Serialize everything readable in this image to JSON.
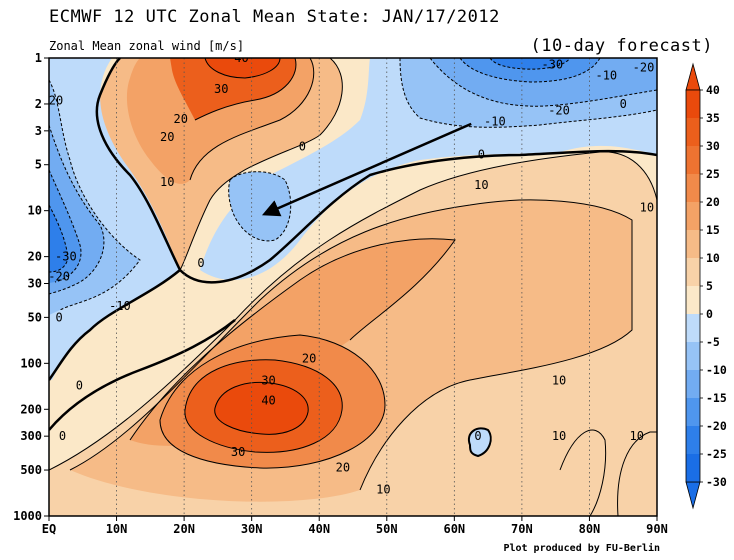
{
  "chart_data": {
    "type": "contour",
    "title": "ECMWF 12 UTC Zonal Mean State: JAN/17/2012",
    "subtitle_left": "Zonal Mean zonal wind [m/s]",
    "subtitle_right": "(10-day forecast)",
    "credit": "Plot produced by FU-Berlin",
    "x_axis": {
      "ticks": [
        "EQ",
        "10N",
        "20N",
        "30N",
        "40N",
        "50N",
        "60N",
        "70N",
        "80N",
        "90N"
      ],
      "range": [
        0,
        90
      ],
      "unit": "degrees latitude"
    },
    "y_axis": {
      "scale": "log",
      "reversed": true,
      "range": [
        1000,
        1
      ],
      "ticks": [
        1,
        2,
        3,
        5,
        10,
        20,
        30,
        50,
        100,
        200,
        300,
        500,
        1000
      ],
      "unit": "hPa"
    },
    "colorbar": {
      "levels": [
        -30,
        -25,
        -20,
        -15,
        -10,
        -5,
        0,
        5,
        10,
        15,
        20,
        25,
        30,
        35,
        40
      ],
      "labels": [
        "40",
        "35",
        "30",
        "25",
        "20",
        "15",
        "10",
        "5",
        "0",
        "-5",
        "-10",
        "-15",
        "-20",
        "-25",
        "-30"
      ],
      "colors": [
        "#1a6ee6",
        "#2e7fea",
        "#4f96ee",
        "#72acf2",
        "#96c3f6",
        "#bedbfa",
        "#fbe8c8",
        "#f8d2a8",
        "#f6bb87",
        "#f3a266",
        "#f18a4a",
        "#ee7331",
        "#ec5f1c",
        "#ea4a0c"
      ]
    },
    "contour_labels": [
      {
        "text": "40",
        "lat": 28.5,
        "p": 1.0
      },
      {
        "text": "30",
        "lat": 25.5,
        "p": 1.6
      },
      {
        "text": "20",
        "lat": 19.5,
        "p": 2.5
      },
      {
        "text": "20",
        "lat": 17.5,
        "p": 3.3
      },
      {
        "text": "10",
        "lat": 17.5,
        "p": 6.5
      },
      {
        "text": "0",
        "lat": 22.5,
        "p": 22
      },
      {
        "text": "0",
        "lat": 37.5,
        "p": 3.8
      },
      {
        "text": "-20",
        "lat": 0.5,
        "p": 1.9
      },
      {
        "text": "-30",
        "lat": 2.5,
        "p": 20
      },
      {
        "text": "-20",
        "lat": 1.5,
        "p": 27
      },
      {
        "text": "-10",
        "lat": 10.5,
        "p": 42
      },
      {
        "text": "0",
        "lat": 1.5,
        "p": 50
      },
      {
        "text": "0",
        "lat": 4.5,
        "p": 140
      },
      {
        "text": "0",
        "lat": 2.0,
        "p": 300
      },
      {
        "text": "20",
        "lat": 38.5,
        "p": 93
      },
      {
        "text": "30",
        "lat": 32.5,
        "p": 130
      },
      {
        "text": "40",
        "lat": 32.5,
        "p": 175
      },
      {
        "text": "30",
        "lat": 28.0,
        "p": 380
      },
      {
        "text": "20",
        "lat": 43.5,
        "p": 480
      },
      {
        "text": "10",
        "lat": 49.5,
        "p": 670
      },
      {
        "text": "10",
        "lat": 64.0,
        "p": 6.8
      },
      {
        "text": "0",
        "lat": 64.0,
        "p": 4.3
      },
      {
        "text": "-10",
        "lat": 66.0,
        "p": 2.6
      },
      {
        "text": "-20",
        "lat": 75.5,
        "p": 2.2
      },
      {
        "text": "-30",
        "lat": 74.5,
        "p": 1.1
      },
      {
        "text": "-10",
        "lat": 82.5,
        "p": 1.3
      },
      {
        "text": "-20",
        "lat": 88.0,
        "p": 1.15
      },
      {
        "text": "0",
        "lat": 85.0,
        "p": 2.0
      },
      {
        "text": "10",
        "lat": 88.5,
        "p": 9.5
      },
      {
        "text": "10",
        "lat": 75.5,
        "p": 130
      },
      {
        "text": "10",
        "lat": 75.5,
        "p": 300
      },
      {
        "text": "10",
        "lat": 87.0,
        "p": 300
      },
      {
        "text": "0",
        "lat": 63.5,
        "p": 300
      }
    ],
    "annotation": {
      "type": "arrow",
      "from": {
        "lat": 62.5,
        "p": 2.7
      },
      "to": {
        "lat": 32.0,
        "p": 10.5
      }
    }
  }
}
